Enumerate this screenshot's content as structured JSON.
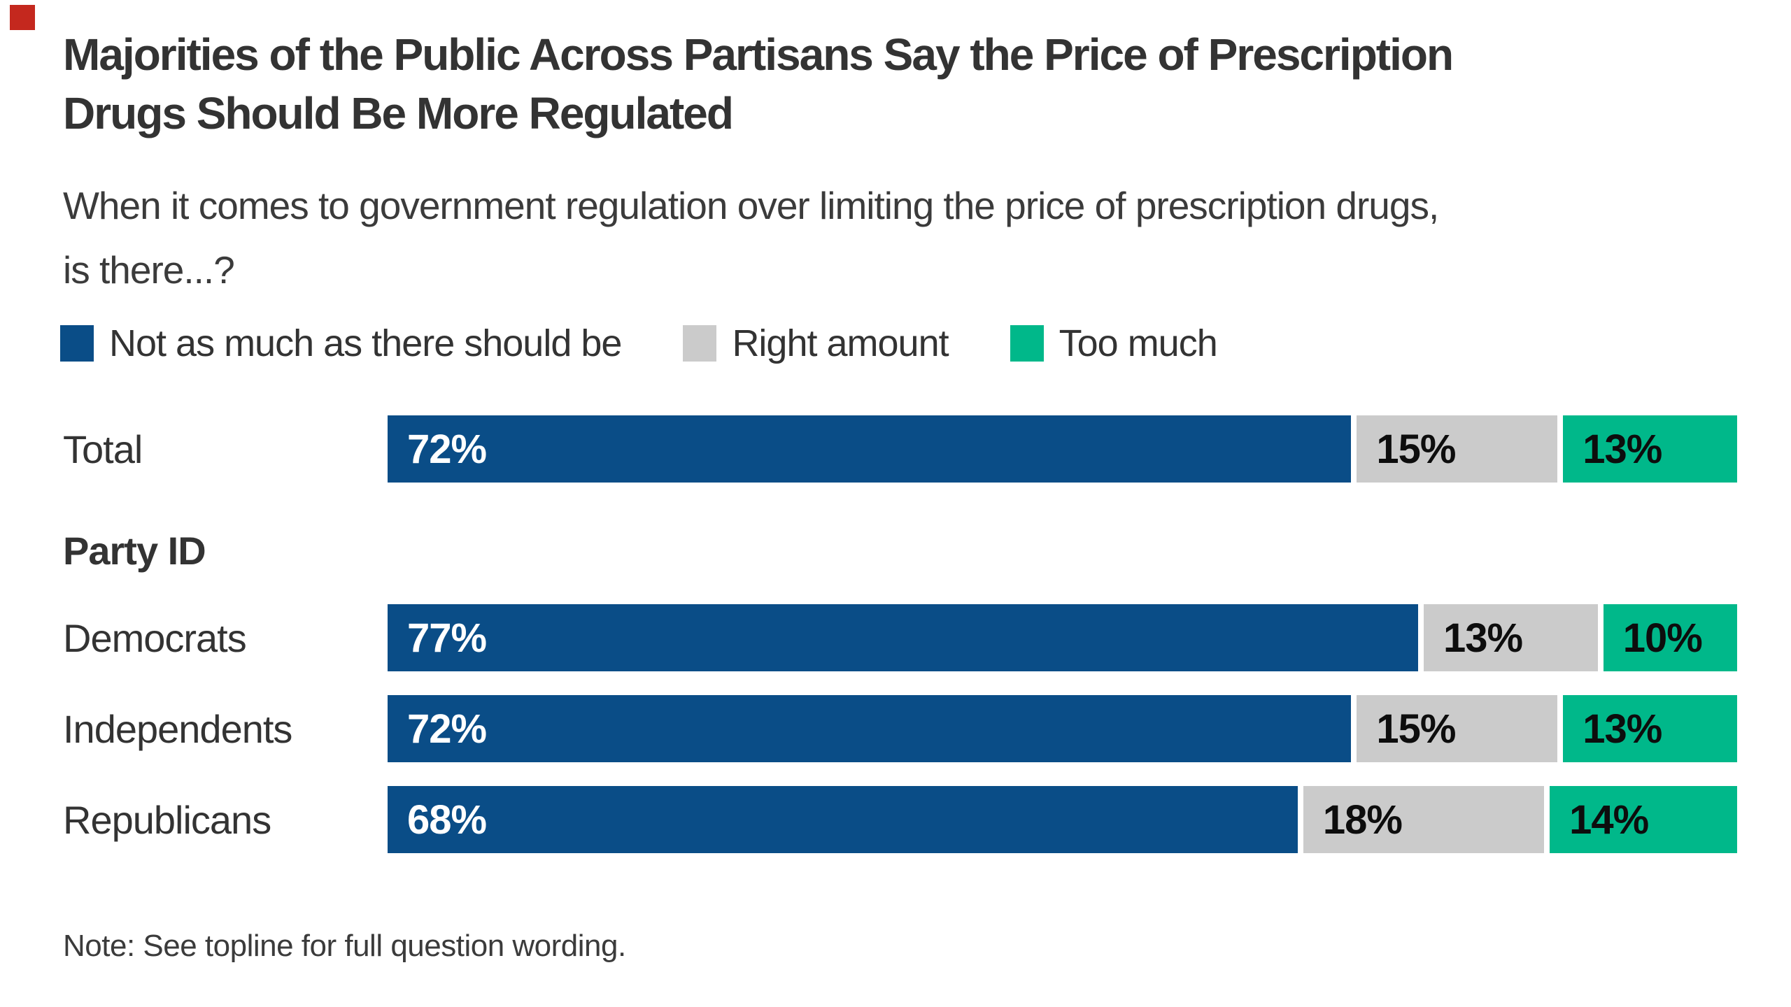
{
  "colors": {
    "blue": "#0A4D87",
    "gray": "#CBCBCB",
    "green": "#00B88A",
    "red_marker": "#C4281E",
    "title_text": "#333333",
    "body_text": "#3B3B3B"
  },
  "title": {
    "line1": "Majorities of the Public Across Partisans Say the Price of Prescription",
    "line2": "Drugs Should Be More Regulated"
  },
  "subtitle": {
    "line1": "When it comes to government regulation over limiting the price of prescription drugs,",
    "line2": "is there...?"
  },
  "legend": {
    "items": [
      {
        "label": "Not as much as there should be",
        "color_key": "blue"
      },
      {
        "label": "Right amount",
        "color_key": "gray"
      },
      {
        "label": "Too much",
        "color_key": "green"
      }
    ]
  },
  "note": "Note: See topline for full question wording.",
  "chart_data": {
    "type": "bar",
    "orientation": "horizontal",
    "stacked": true,
    "title": "Majorities of the Public Across Partisans Say the Price of Prescription Drugs Should Be More Regulated",
    "subtitle": "When it comes to government regulation over limiting the price of prescription drugs, is there...?",
    "note": "Note: See topline for full question wording.",
    "legend_position": "top",
    "xlim": [
      0,
      100
    ],
    "value_suffix": "%",
    "categories": [
      "Total",
      "Democrats",
      "Independents",
      "Republicans"
    ],
    "section_header": {
      "label": "Party ID",
      "before_category": "Democrats"
    },
    "series": [
      {
        "name": "Not as much as there should be",
        "color_key": "blue",
        "color": "#0A4D87",
        "values": [
          72,
          77,
          72,
          68
        ]
      },
      {
        "name": "Right amount",
        "color_key": "gray",
        "color": "#CBCBCB",
        "values": [
          15,
          13,
          15,
          18
        ]
      },
      {
        "name": "Too much",
        "color_key": "green",
        "color": "#00B88A",
        "values": [
          13,
          10,
          13,
          14
        ]
      }
    ]
  }
}
